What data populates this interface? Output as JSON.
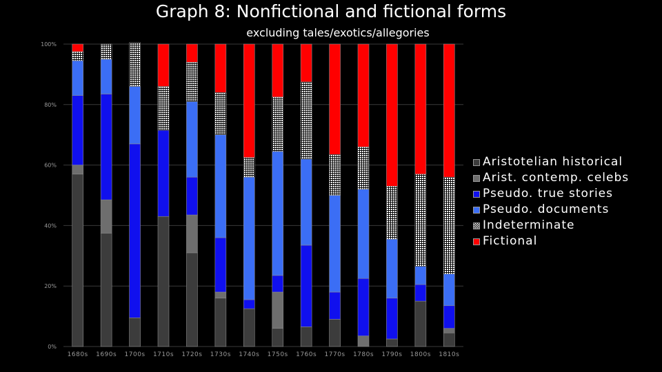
{
  "colors": {
    "background": "#000000",
    "grid": "#3a3a3a",
    "axis_text": "#9a9a9a"
  },
  "chart_data": {
    "type": "bar",
    "stacked": true,
    "title": "Graph 8: Nonfictional and fictional forms",
    "subtitle": "excluding tales/exotics/allegories",
    "ylim": [
      0,
      100
    ],
    "y_ticks": [
      "0%",
      "20%",
      "40%",
      "60%",
      "80%",
      "100%"
    ],
    "grid": true,
    "legend_position": "right",
    "categories": [
      "1680s",
      "1690s",
      "1700s",
      "1710s",
      "1720s",
      "1730s",
      "1740s",
      "1750s",
      "1760s",
      "1770s",
      "1780s",
      "1790s",
      "1800s",
      "1810s"
    ],
    "series": [
      {
        "name": "Aristotelian historical",
        "color": "#3c3c3c",
        "pattern": "solid",
        "values": [
          57,
          37.5,
          9.5,
          43,
          31,
          16,
          12.5,
          6,
          6.5,
          9,
          0,
          2.5,
          15,
          4.5
        ]
      },
      {
        "name": "Arist. contemp. celebs",
        "color": "#6e6e6e",
        "pattern": "solid",
        "values": [
          3,
          11,
          0,
          0,
          12.5,
          2,
          0,
          12,
          0,
          0,
          3.5,
          0,
          0,
          1.5
        ]
      },
      {
        "name": "Pseudo. true stories",
        "color": "#1010ee",
        "pattern": "solid",
        "values": [
          23,
          35,
          57.5,
          28.5,
          12.5,
          18,
          3,
          5.5,
          27,
          9,
          19,
          13.5,
          5.5,
          7.5
        ]
      },
      {
        "name": "Pseudo. documents",
        "color": "#3b6ef5",
        "pattern": "solid",
        "values": [
          11.5,
          11.5,
          19,
          0,
          25,
          34,
          40.5,
          41,
          28.5,
          32,
          29.5,
          19.5,
          6,
          10.5
        ]
      },
      {
        "name": "Indeterminate",
        "color": "#ffffff",
        "pattern": "dots",
        "values": [
          3,
          5,
          14.5,
          14.5,
          13,
          14,
          6.5,
          18,
          25.5,
          13.5,
          14,
          17.5,
          30.5,
          32
        ]
      },
      {
        "name": "Fictional",
        "color": "#ff0000",
        "pattern": "solid",
        "values": [
          2.5,
          0,
          0,
          14,
          6,
          16,
          37.5,
          17.5,
          12.5,
          36.5,
          34,
          47,
          43,
          44
        ]
      }
    ]
  }
}
